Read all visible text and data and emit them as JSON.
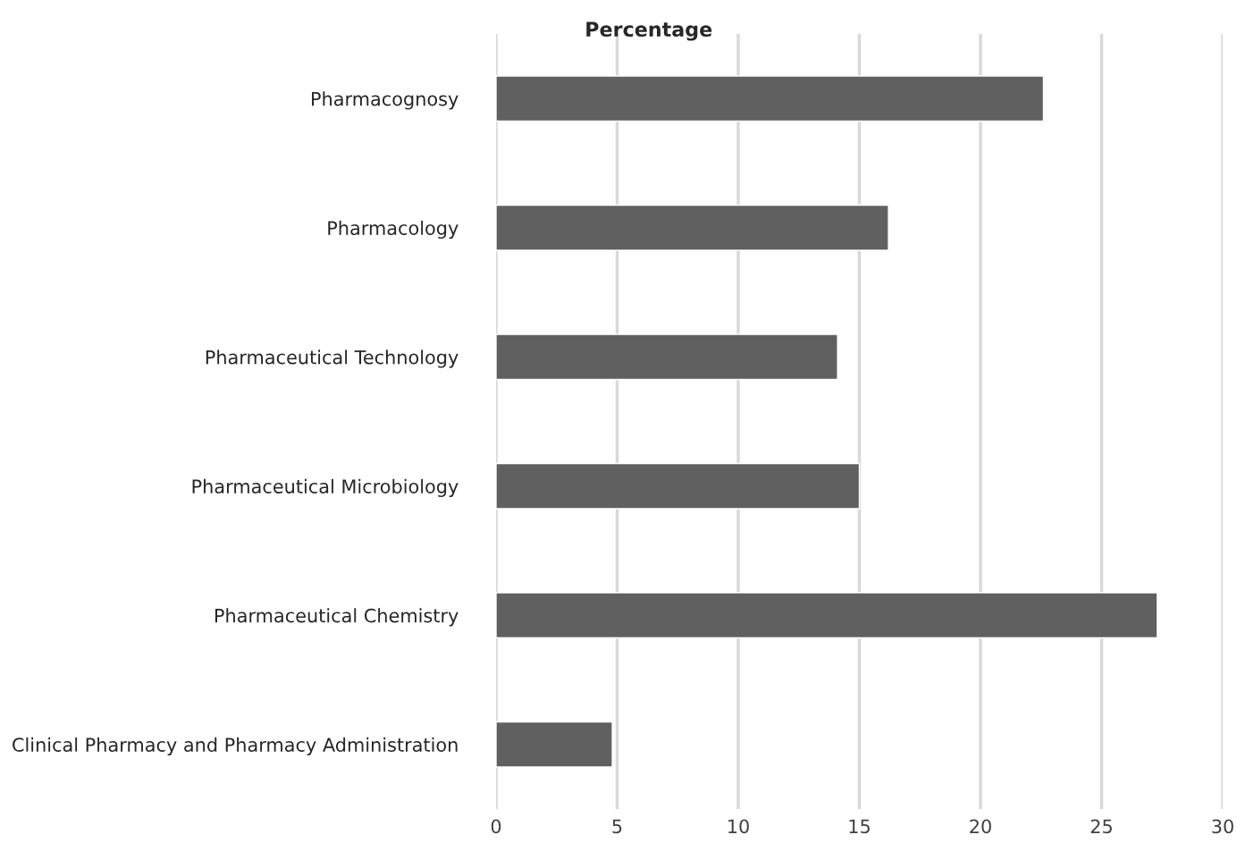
{
  "chart_data": {
    "type": "bar",
    "orientation": "horizontal",
    "title": "Percentage",
    "categories": [
      "Pharmacognosy",
      "Pharmacology",
      "Pharmaceutical Technology",
      "Pharmaceutical Microbiology",
      "Pharmaceutical Chemistry",
      "Clinical Pharmacy and Pharmacy Administration"
    ],
    "values": [
      22.6,
      16.2,
      14.1,
      15.0,
      27.3,
      4.8
    ],
    "color": "#606060",
    "xlim": [
      0,
      30
    ],
    "xticks": [
      0,
      5,
      10,
      15,
      20,
      25,
      30
    ],
    "grid": "x"
  }
}
